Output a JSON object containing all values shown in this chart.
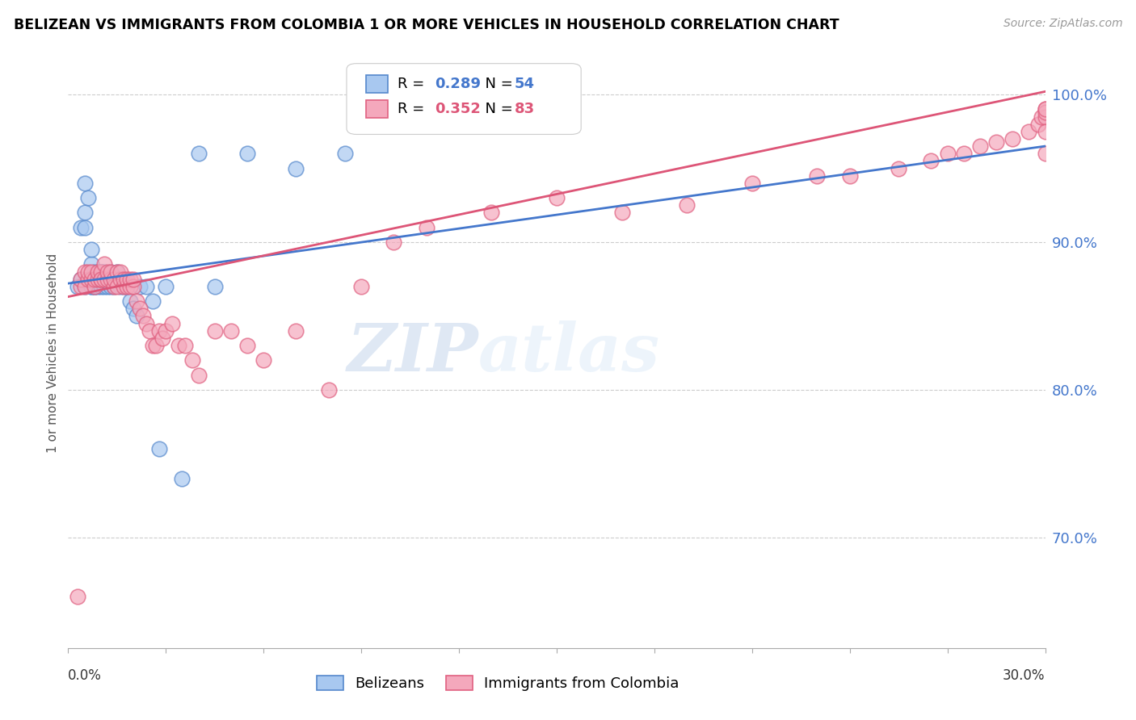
{
  "title": "BELIZEAN VS IMMIGRANTS FROM COLOMBIA 1 OR MORE VEHICLES IN HOUSEHOLD CORRELATION CHART",
  "source": "Source: ZipAtlas.com",
  "ylabel": "1 or more Vehicles in Household",
  "ylim": [
    0.625,
    1.025
  ],
  "xlim": [
    0.0,
    0.3
  ],
  "blue_r": 0.289,
  "blue_n": 54,
  "pink_r": 0.352,
  "pink_n": 83,
  "blue_color": "#A8C8F0",
  "pink_color": "#F4A8BC",
  "blue_edge_color": "#5588CC",
  "pink_edge_color": "#E06080",
  "blue_line_color": "#4477CC",
  "pink_line_color": "#DD5577",
  "legend_label_blue": "Belizeans",
  "legend_label_pink": "Immigrants from Colombia",
  "watermark_zip": "ZIP",
  "watermark_atlas": "atlas",
  "ytick_vals": [
    0.7,
    0.8,
    0.9,
    1.0
  ],
  "ytick_labels": [
    "70.0%",
    "80.0%",
    "90.0%",
    "100.0%"
  ],
  "blue_scatter_x": [
    0.003,
    0.004,
    0.004,
    0.005,
    0.005,
    0.005,
    0.005,
    0.006,
    0.006,
    0.007,
    0.007,
    0.007,
    0.007,
    0.008,
    0.008,
    0.008,
    0.008,
    0.009,
    0.009,
    0.009,
    0.01,
    0.01,
    0.01,
    0.01,
    0.01,
    0.011,
    0.011,
    0.011,
    0.012,
    0.012,
    0.012,
    0.013,
    0.013,
    0.013,
    0.014,
    0.015,
    0.015,
    0.016,
    0.017,
    0.018,
    0.019,
    0.02,
    0.021,
    0.022,
    0.024,
    0.026,
    0.028,
    0.03,
    0.035,
    0.04,
    0.045,
    0.055,
    0.07,
    0.085
  ],
  "blue_scatter_y": [
    0.87,
    0.875,
    0.91,
    0.94,
    0.92,
    0.87,
    0.91,
    0.93,
    0.875,
    0.87,
    0.885,
    0.895,
    0.87,
    0.87,
    0.875,
    0.88,
    0.87,
    0.87,
    0.875,
    0.88,
    0.875,
    0.88,
    0.87,
    0.875,
    0.88,
    0.87,
    0.875,
    0.88,
    0.875,
    0.87,
    0.875,
    0.87,
    0.875,
    0.88,
    0.87,
    0.88,
    0.875,
    0.87,
    0.87,
    0.87,
    0.86,
    0.855,
    0.85,
    0.87,
    0.87,
    0.86,
    0.76,
    0.87,
    0.74,
    0.96,
    0.87,
    0.96,
    0.95,
    0.96
  ],
  "pink_scatter_x": [
    0.003,
    0.004,
    0.004,
    0.005,
    0.005,
    0.006,
    0.006,
    0.007,
    0.007,
    0.008,
    0.008,
    0.009,
    0.009,
    0.01,
    0.01,
    0.01,
    0.011,
    0.011,
    0.012,
    0.012,
    0.013,
    0.013,
    0.014,
    0.014,
    0.015,
    0.015,
    0.016,
    0.016,
    0.017,
    0.017,
    0.018,
    0.018,
    0.019,
    0.019,
    0.02,
    0.02,
    0.021,
    0.022,
    0.023,
    0.024,
    0.025,
    0.026,
    0.027,
    0.028,
    0.029,
    0.03,
    0.032,
    0.034,
    0.036,
    0.038,
    0.04,
    0.045,
    0.05,
    0.055,
    0.06,
    0.07,
    0.08,
    0.09,
    0.1,
    0.11,
    0.13,
    0.15,
    0.17,
    0.19,
    0.21,
    0.23,
    0.24,
    0.255,
    0.265,
    0.27,
    0.275,
    0.28,
    0.285,
    0.29,
    0.295,
    0.298,
    0.299,
    0.3,
    0.3,
    0.3,
    0.3,
    0.3,
    0.3
  ],
  "pink_scatter_y": [
    0.66,
    0.87,
    0.875,
    0.87,
    0.88,
    0.875,
    0.88,
    0.875,
    0.88,
    0.87,
    0.875,
    0.875,
    0.88,
    0.875,
    0.88,
    0.875,
    0.875,
    0.885,
    0.875,
    0.88,
    0.875,
    0.88,
    0.87,
    0.875,
    0.87,
    0.88,
    0.875,
    0.88,
    0.87,
    0.875,
    0.87,
    0.875,
    0.87,
    0.875,
    0.87,
    0.875,
    0.86,
    0.855,
    0.85,
    0.845,
    0.84,
    0.83,
    0.83,
    0.84,
    0.835,
    0.84,
    0.845,
    0.83,
    0.83,
    0.82,
    0.81,
    0.84,
    0.84,
    0.83,
    0.82,
    0.84,
    0.8,
    0.87,
    0.9,
    0.91,
    0.92,
    0.93,
    0.92,
    0.925,
    0.94,
    0.945,
    0.945,
    0.95,
    0.955,
    0.96,
    0.96,
    0.965,
    0.968,
    0.97,
    0.975,
    0.98,
    0.985,
    0.99,
    0.985,
    0.96,
    0.988,
    0.975,
    0.99
  ]
}
